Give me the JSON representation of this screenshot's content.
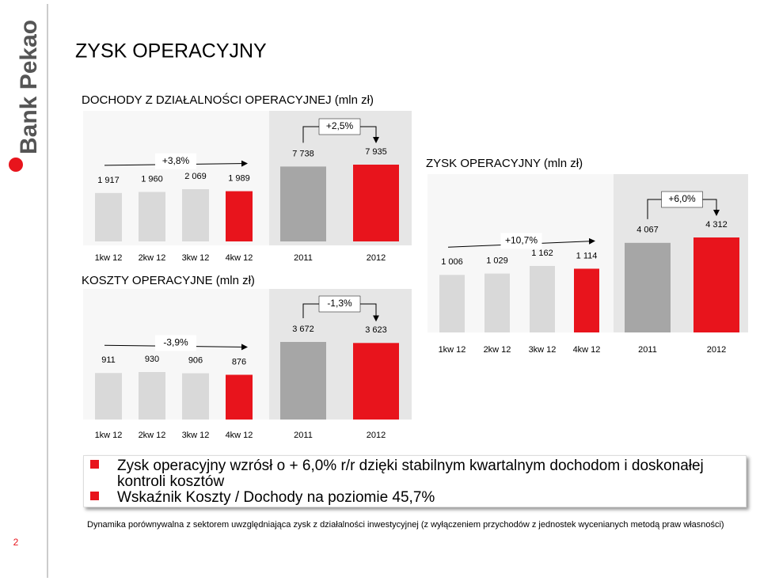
{
  "logo": "Bank Pekao",
  "title": "ZYSK OPERACYJNY",
  "chart_data": [
    {
      "type": "bar",
      "title": "DOCHODY Z DZIAŁALNOŚCI OPERACYJNEJ (mln zł)",
      "categories": [
        "1kw 12",
        "2kw 12",
        "3kw 12",
        "4kw 12",
        "2011",
        "2012"
      ],
      "values": [
        1917,
        1960,
        2069,
        1989,
        7738,
        7935
      ],
      "value_labels": [
        "1 917",
        "1 960",
        "2 069",
        "1 989",
        "7 738",
        "7 935"
      ],
      "colors": [
        "#d9d9d9",
        "#d9d9d9",
        "#d9d9d9",
        "#e8141c",
        "#a6a6a6",
        "#e8141c"
      ],
      "annotations": [
        "+3,8%",
        "+2,5%"
      ]
    },
    {
      "type": "bar",
      "title": "KOSZTY OPERACYJNE (mln zł)",
      "categories": [
        "1kw 12",
        "2kw 12",
        "3kw 12",
        "4kw 12",
        "2011",
        "2012"
      ],
      "values": [
        911,
        930,
        906,
        876,
        3672,
        3623
      ],
      "value_labels": [
        "911",
        "930",
        "906",
        "876",
        "3 672",
        "3 623"
      ],
      "colors": [
        "#d9d9d9",
        "#d9d9d9",
        "#d9d9d9",
        "#e8141c",
        "#a6a6a6",
        "#e8141c"
      ],
      "annotations": [
        "-3,9%",
        "-1,3%"
      ]
    },
    {
      "type": "bar",
      "title": "ZYSK OPERACYJNY (mln zł)",
      "categories": [
        "1kw 12",
        "2kw 12",
        "3kw 12",
        "4kw 12",
        "2011",
        "2012"
      ],
      "values": [
        1006,
        1029,
        1162,
        1114,
        4067,
        4312
      ],
      "value_labels": [
        "1 006",
        "1 029",
        "1 162",
        "1 114",
        "4 067",
        "4 312"
      ],
      "colors": [
        "#d9d9d9",
        "#d9d9d9",
        "#d9d9d9",
        "#e8141c",
        "#a6a6a6",
        "#e8141c"
      ],
      "annotations": [
        "+10,7%",
        "+6,0%"
      ]
    }
  ],
  "bullets": [
    "Zysk operacyjny wzrósł o + 6,0% r/r dzięki stabilnym kwartalnym dochodom i doskonałej kontroli kosztów",
    "Wskaźnik Koszty / Dochody na poziomie 45,7%"
  ],
  "footnote": "Dynamika porównywalna z sektorem uwzględniająca zysk z działalności inwestycyjnej (z wyłączeniem przychodów z jednostek wycenianych metodą praw własności)",
  "page_number": "2"
}
